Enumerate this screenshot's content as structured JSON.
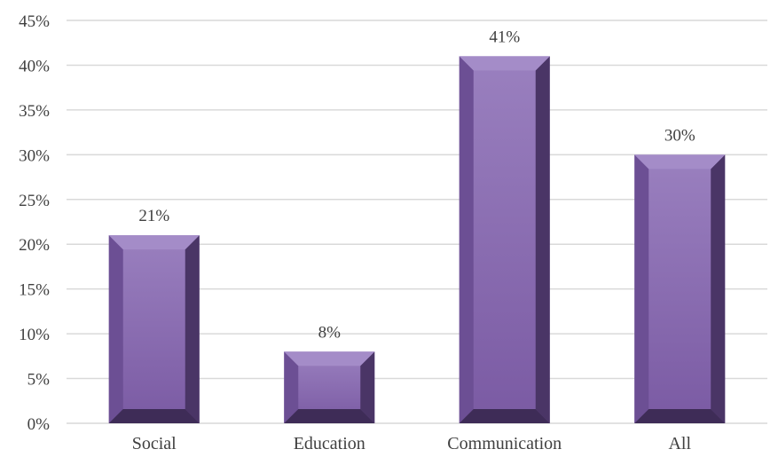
{
  "chart_data": {
    "type": "bar",
    "categories": [
      "Social",
      "Education",
      "Communication",
      "All"
    ],
    "values": [
      21,
      8,
      41,
      30
    ],
    "data_labels": [
      "21%",
      "8%",
      "41%",
      "30%"
    ],
    "title": "",
    "xlabel": "",
    "ylabel": "",
    "ylim": [
      0,
      45
    ],
    "y_ticks": [
      0,
      5,
      10,
      15,
      20,
      25,
      30,
      35,
      40,
      45
    ],
    "y_tick_labels": [
      "0%",
      "5%",
      "10%",
      "15%",
      "20%",
      "25%",
      "30%",
      "35%",
      "40%",
      "45%"
    ],
    "grid": true,
    "legend": "none",
    "colors": {
      "bar_face": "#8a6bb0",
      "bar_face_top": "#9a80bf",
      "bar_left": "#6c4f94",
      "bar_right": "#4a3566",
      "bar_top": "#a48cc8",
      "bar_bottom": "#3e2c57",
      "grid": "#d9d9d9",
      "text": "#404040"
    }
  }
}
